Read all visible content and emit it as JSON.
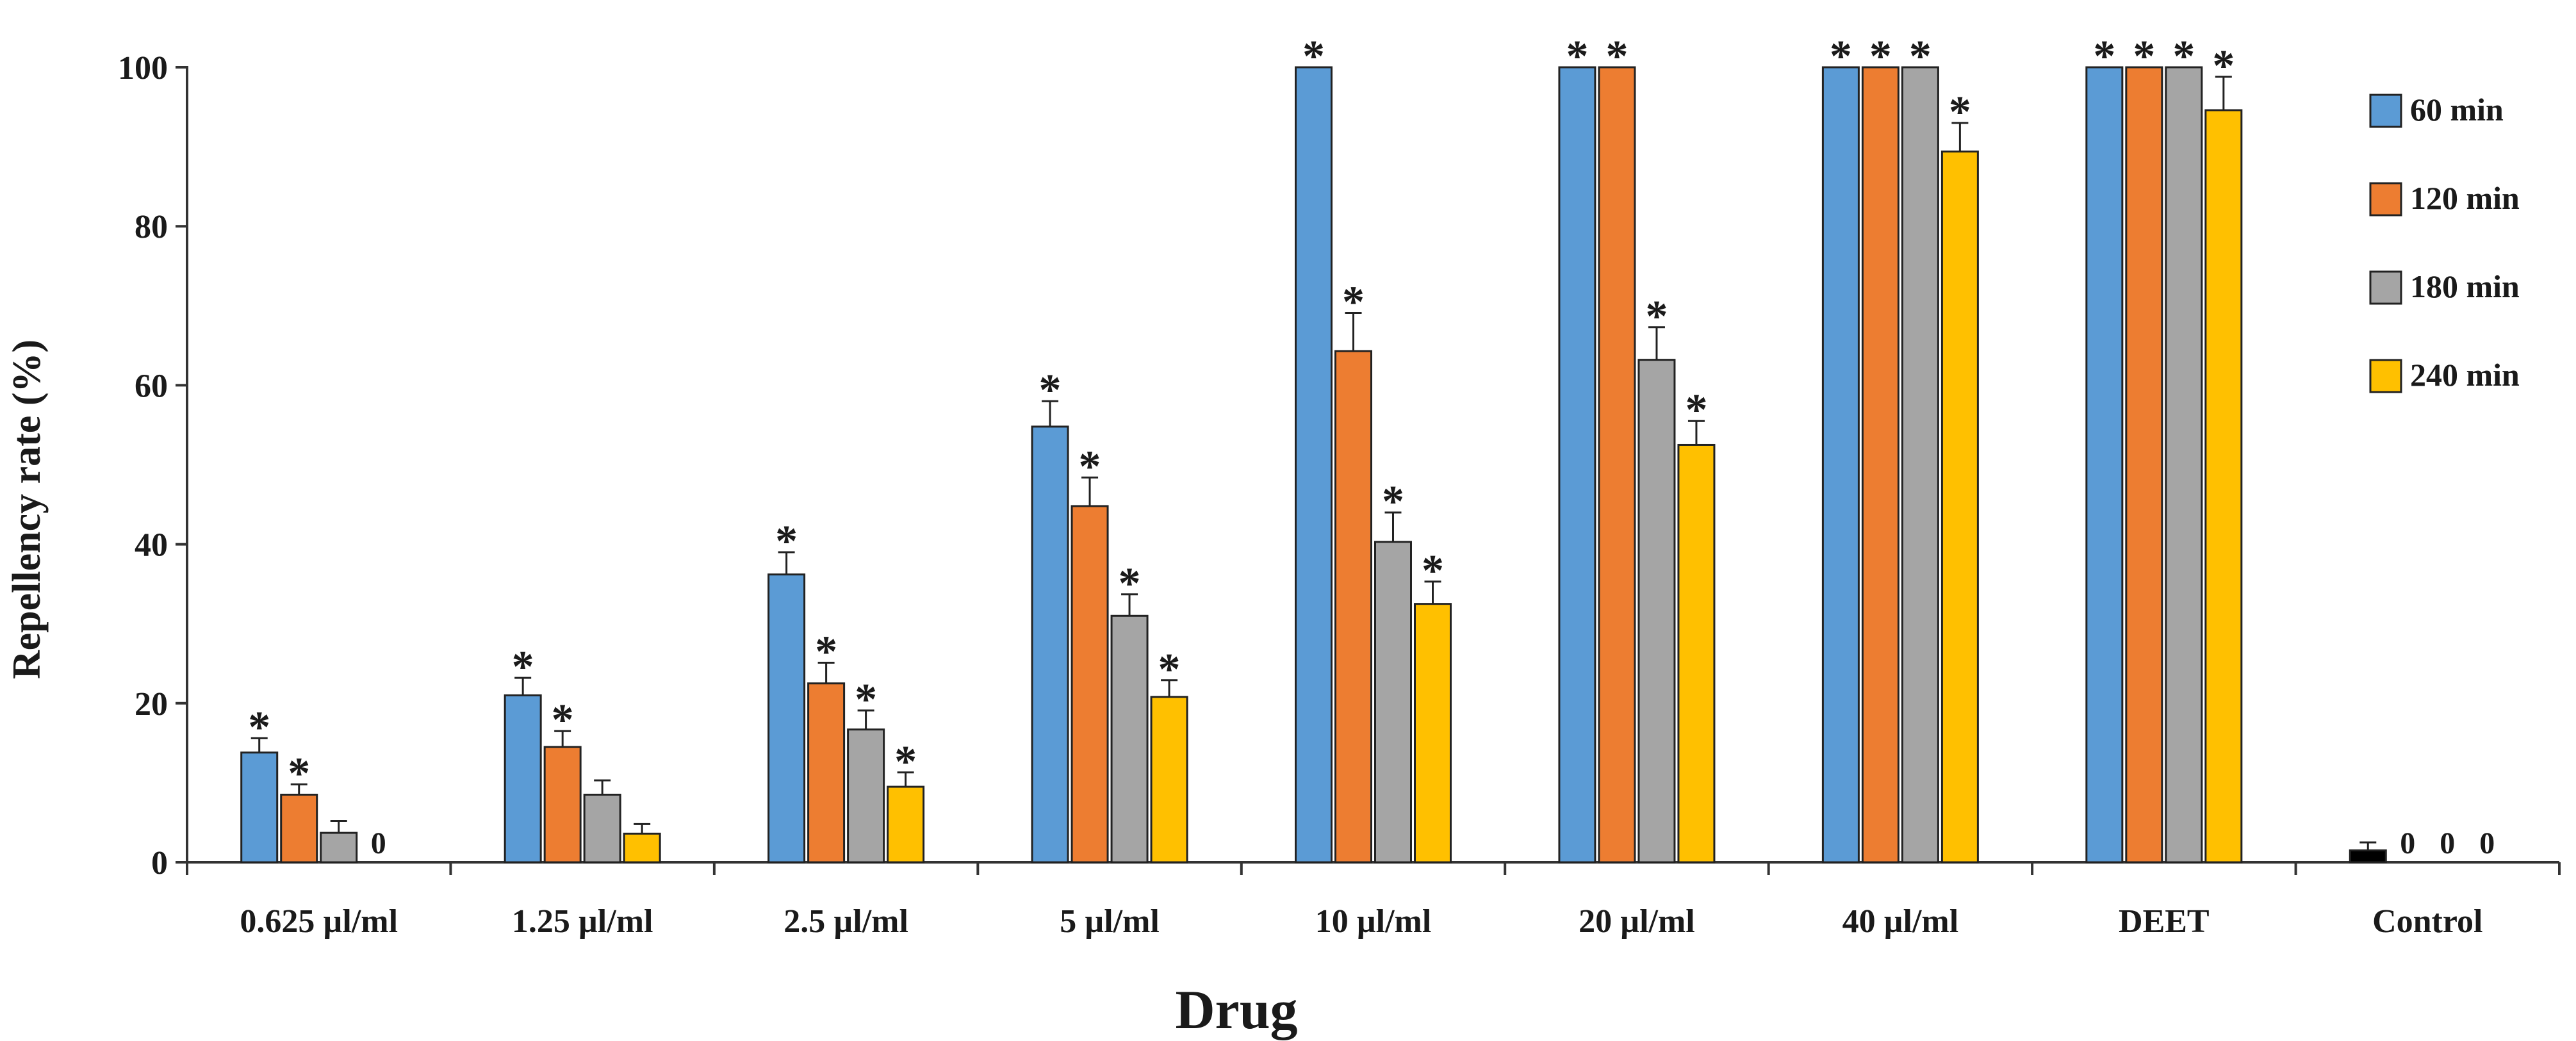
{
  "chart_data": {
    "type": "bar",
    "title": "",
    "xlabel": "Drug",
    "ylabel": "Repellency rate (%)",
    "ylim": [
      0,
      100
    ],
    "yticks": [
      0,
      20,
      40,
      60,
      80,
      100
    ],
    "grid": false,
    "legend_position": "right",
    "categories": [
      "0.625 µl/ml",
      "1.25 µl/ml",
      "2.5 µl/ml",
      "5 µl/ml",
      "10 µl/ml",
      "20 µl/ml",
      "40 µl/ml",
      "DEET",
      "Control"
    ],
    "series": [
      {
        "name": "60 min",
        "color": "#5B9BD5",
        "values": [
          13.8,
          21.0,
          36.2,
          54.8,
          100,
          100,
          100,
          100,
          1.5
        ],
        "errors": [
          1.8,
          2.2,
          2.8,
          3.2,
          0,
          0,
          0,
          0,
          1.0
        ],
        "markers": [
          "*",
          "*",
          "*",
          "*",
          "*",
          "*",
          "*",
          "*",
          ""
        ]
      },
      {
        "name": "120 min",
        "color": "#ED7D31",
        "values": [
          8.5,
          14.5,
          22.5,
          44.8,
          64.3,
          100,
          100,
          100,
          0
        ],
        "errors": [
          1.3,
          2.0,
          2.6,
          3.6,
          4.8,
          0,
          0,
          0,
          0
        ],
        "markers": [
          "*",
          "*",
          "*",
          "*",
          "*",
          "*",
          "*",
          "*",
          "0"
        ]
      },
      {
        "name": "180 min",
        "color": "#A5A5A5",
        "values": [
          3.7,
          8.5,
          16.7,
          31.0,
          40.3,
          63.2,
          100,
          100,
          0
        ],
        "errors": [
          1.5,
          1.8,
          2.4,
          2.7,
          3.7,
          4.1,
          0,
          0,
          0
        ],
        "markers": [
          "",
          "",
          "*",
          "*",
          "*",
          "*",
          "*",
          "*",
          "0"
        ]
      },
      {
        "name": "240 min",
        "color": "#FFC000",
        "values": [
          0,
          3.6,
          9.5,
          20.8,
          32.5,
          52.5,
          89.4,
          94.6,
          0
        ],
        "errors": [
          0,
          1.2,
          1.8,
          2.1,
          2.8,
          3.0,
          3.6,
          4.2,
          0
        ],
        "markers": [
          "0",
          "",
          "*",
          "*",
          "*",
          "*",
          "*",
          "*",
          "0"
        ]
      }
    ],
    "control_bar_color": "#000000"
  }
}
